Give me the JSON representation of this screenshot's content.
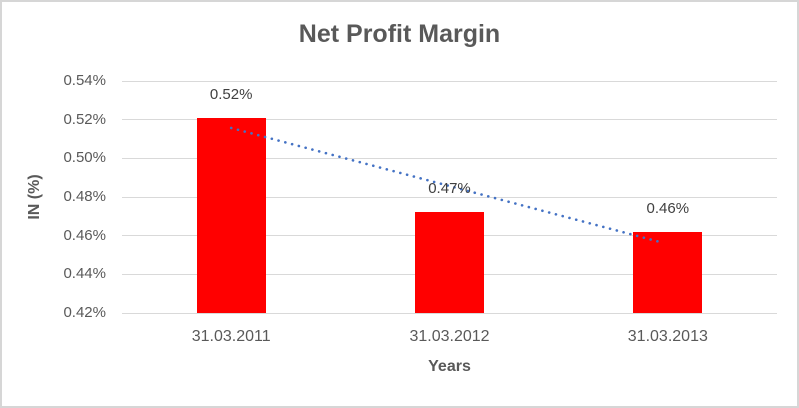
{
  "chart_data": {
    "type": "bar",
    "title": "Net Profit Margin",
    "xlabel": "Years",
    "ylabel": "IN (%)",
    "categories": [
      "31.03.2011",
      "31.03.2012",
      "31.03.2013"
    ],
    "values": [
      0.521,
      0.472,
      0.462
    ],
    "data_labels": [
      "0.52%",
      "0.47%",
      "0.46%"
    ],
    "ylim": [
      0.42,
      0.54
    ],
    "ytick_step": 0.02,
    "ytick_labels": [
      "0.42%",
      "0.44%",
      "0.46%",
      "0.48%",
      "0.50%",
      "0.52%",
      "0.54%"
    ],
    "grid": true,
    "legend": "none",
    "bar_color": "#ff0000",
    "trendline": {
      "style": "dotted",
      "color": "#4472c4",
      "start_value": 0.5157,
      "end_value": 0.4562
    },
    "colors": {
      "title_text": "#595959",
      "axis_text": "#595959",
      "data_label_text": "#404040",
      "gridline": "#d9d9d9",
      "border": "#d6d6d6"
    }
  }
}
